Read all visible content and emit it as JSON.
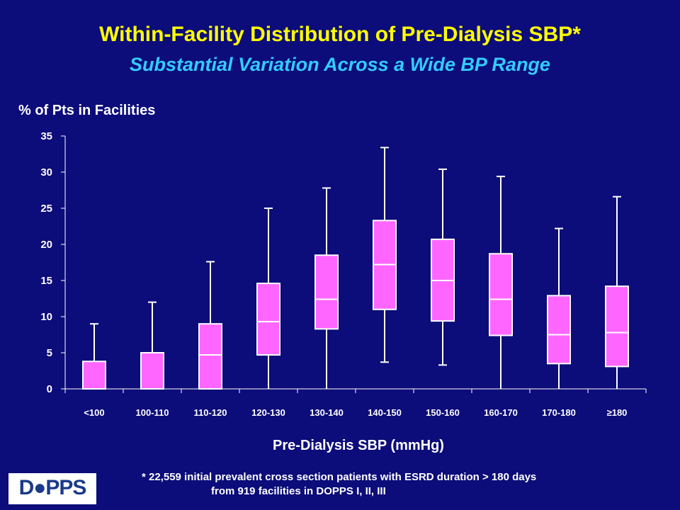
{
  "slide": {
    "title": "Within-Facility Distribution of Pre-Dialysis SBP*",
    "subtitle": "Substantial Variation Across a Wide BP Range",
    "footnote_line1": "* 22,559 initial prevalent cross section patients with ESRD duration > 180 days",
    "footnote_line2": "from 919 facilities in DOPPS I, II, III",
    "logo_text": "D●PPS"
  },
  "colors": {
    "background": "#0c0c7a",
    "box_fill": "#ff66ff",
    "whisker": "#ffffff",
    "title": "#ffff00",
    "subtitle": "#33ccff"
  },
  "chart_data": {
    "type": "box",
    "title": "",
    "xlabel": "Pre-Dialysis SBP (mmHg)",
    "ylabel": "% of Pts in Facilities",
    "ylim": [
      0,
      35
    ],
    "yticks": [
      0,
      5,
      10,
      15,
      20,
      25,
      30,
      35
    ],
    "grid": false,
    "categories": [
      "<100",
      "100-110",
      "110-120",
      "120-130",
      "130-140",
      "140-150",
      "150-160",
      "160-170",
      "170-180",
      "≥180"
    ],
    "boxes": [
      {
        "min": 0,
        "q1": 0,
        "median": 0,
        "q3": 3.8,
        "max": 9
      },
      {
        "min": 0,
        "q1": 0,
        "median": 0,
        "q3": 5,
        "max": 12
      },
      {
        "min": 0,
        "q1": 0,
        "median": 4.7,
        "q3": 9,
        "max": 17.6
      },
      {
        "min": 0,
        "q1": 4.7,
        "median": 9.3,
        "q3": 14.6,
        "max": 25
      },
      {
        "min": 0,
        "q1": 8.3,
        "median": 12.4,
        "q3": 18.5,
        "max": 27.8
      },
      {
        "min": 3.7,
        "q1": 11,
        "median": 17.2,
        "q3": 23.3,
        "max": 33.4
      },
      {
        "min": 3.3,
        "q1": 9.4,
        "median": 15,
        "q3": 20.7,
        "max": 30.4
      },
      {
        "min": 0,
        "q1": 7.4,
        "median": 12.4,
        "q3": 18.7,
        "max": 29.4
      },
      {
        "min": 0,
        "q1": 3.5,
        "median": 7.5,
        "q3": 12.9,
        "max": 22.2
      },
      {
        "min": 0,
        "q1": 3.1,
        "median": 7.8,
        "q3": 14.2,
        "max": 26.6
      }
    ]
  }
}
